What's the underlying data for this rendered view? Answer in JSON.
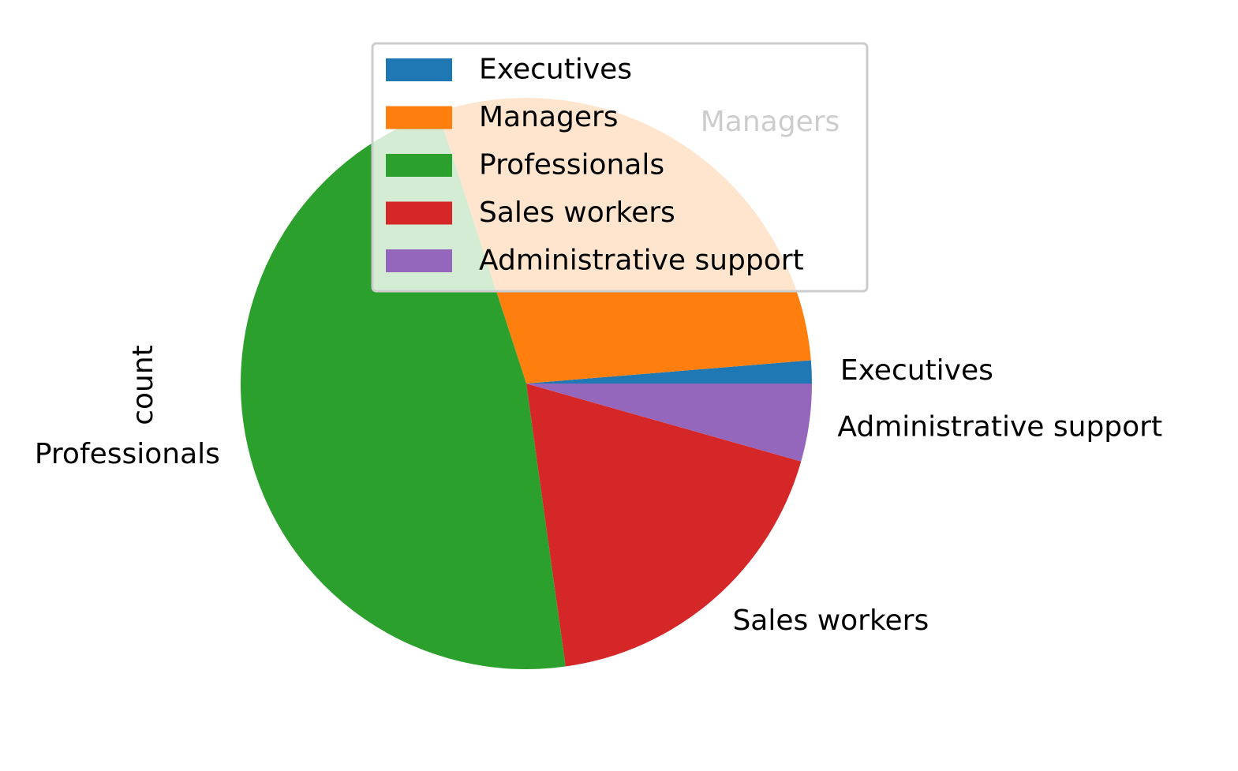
{
  "chart_data": {
    "type": "pie",
    "ylabel": "count",
    "start_angle": 0,
    "direction": "counterclockwise",
    "slices": [
      {
        "label": "Executives",
        "value": 1.3,
        "color": "#1f77b4"
      },
      {
        "label": "Managers",
        "value": 28.7,
        "color": "#ff7f0e"
      },
      {
        "label": "Professionals",
        "value": 47.2,
        "color": "#2ca02c"
      },
      {
        "label": "Sales workers",
        "value": 18.4,
        "color": "#d62728"
      },
      {
        "label": "Administrative support",
        "value": 4.4,
        "color": "#9467bd"
      }
    ],
    "legend": {
      "placement": "upper center",
      "entries": [
        "Executives",
        "Managers",
        "Professionals",
        "Sales workers",
        "Administrative support"
      ]
    }
  }
}
